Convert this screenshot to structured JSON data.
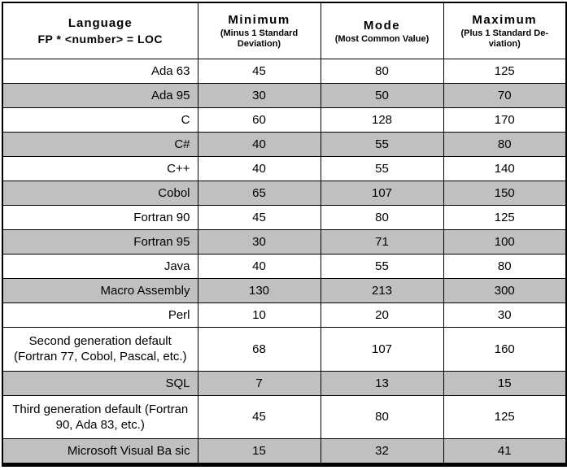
{
  "colors": {
    "row_shade": "#c0c0c0",
    "border": "#000000",
    "background": "#ffffff",
    "text": "#000000"
  },
  "table": {
    "header": {
      "language": {
        "title": "Language",
        "subtitle": "FP * <number> = LOC"
      },
      "minimum": {
        "title": "Minimum",
        "subtitle": "(Minus 1 Standard Deviation)"
      },
      "mode": {
        "title": "Mode",
        "subtitle": "(Most Common Value)"
      },
      "maximum": {
        "title": "Maximum",
        "subtitle": "(Plus 1 Standard De-viation)"
      }
    },
    "rows": [
      {
        "language": "Ada 63",
        "min": "45",
        "mode": "80",
        "max": "125"
      },
      {
        "language": "Ada 95",
        "min": "30",
        "mode": "50",
        "max": "70"
      },
      {
        "language": "C",
        "min": "60",
        "mode": "128",
        "max": "170"
      },
      {
        "language": "C#",
        "min": "40",
        "mode": "55",
        "max": "80"
      },
      {
        "language": "C++",
        "min": "40",
        "mode": "55",
        "max": "140"
      },
      {
        "language": "Cobol",
        "min": "65",
        "mode": "107",
        "max": "150"
      },
      {
        "language": "Fortran 90",
        "min": "45",
        "mode": "80",
        "max": "125"
      },
      {
        "language": "Fortran 95",
        "min": "30",
        "mode": "71",
        "max": "100"
      },
      {
        "language": "Java",
        "min": "40",
        "mode": "55",
        "max": "80"
      },
      {
        "language": "Macro Assembly",
        "min": "130",
        "mode": "213",
        "max": "300"
      },
      {
        "language": "Perl",
        "min": "10",
        "mode": "20",
        "max": "30"
      },
      {
        "language": "Second generation default (Fortran 77, Cobol, Pascal, etc.)",
        "min": "68",
        "mode": "107",
        "max": "160"
      },
      {
        "language": "SQL",
        "min": "7",
        "mode": "13",
        "max": "15"
      },
      {
        "language": "Third generation default (Fortran 90, Ada 83, etc.)",
        "min": "45",
        "mode": "80",
        "max": "125"
      },
      {
        "language": "Microsoft Visual Ba sic",
        "min": "15",
        "mode": "32",
        "max": "41"
      }
    ]
  },
  "chart_data": {
    "type": "table",
    "title": "FP * <number> = LOC",
    "columns": [
      "Language",
      "Minimum (Minus 1 Standard Deviation)",
      "Mode (Most Common Value)",
      "Maximum (Plus 1 Standard Deviation)"
    ],
    "rows": [
      [
        "Ada 63",
        45,
        80,
        125
      ],
      [
        "Ada 95",
        30,
        50,
        70
      ],
      [
        "C",
        60,
        128,
        170
      ],
      [
        "C#",
        40,
        55,
        80
      ],
      [
        "C++",
        40,
        55,
        140
      ],
      [
        "Cobol",
        65,
        107,
        150
      ],
      [
        "Fortran 90",
        45,
        80,
        125
      ],
      [
        "Fortran 95",
        30,
        71,
        100
      ],
      [
        "Java",
        40,
        55,
        80
      ],
      [
        "Macro Assembly",
        130,
        213,
        300
      ],
      [
        "Perl",
        10,
        20,
        30
      ],
      [
        "Second generation default (Fortran 77, Cobol, Pascal, etc.)",
        68,
        107,
        160
      ],
      [
        "SQL",
        7,
        13,
        15
      ],
      [
        "Third generation default (Fortran 90, Ada 83, etc.)",
        45,
        80,
        125
      ],
      [
        "Microsoft Visual Ba sic",
        15,
        32,
        41
      ]
    ]
  }
}
